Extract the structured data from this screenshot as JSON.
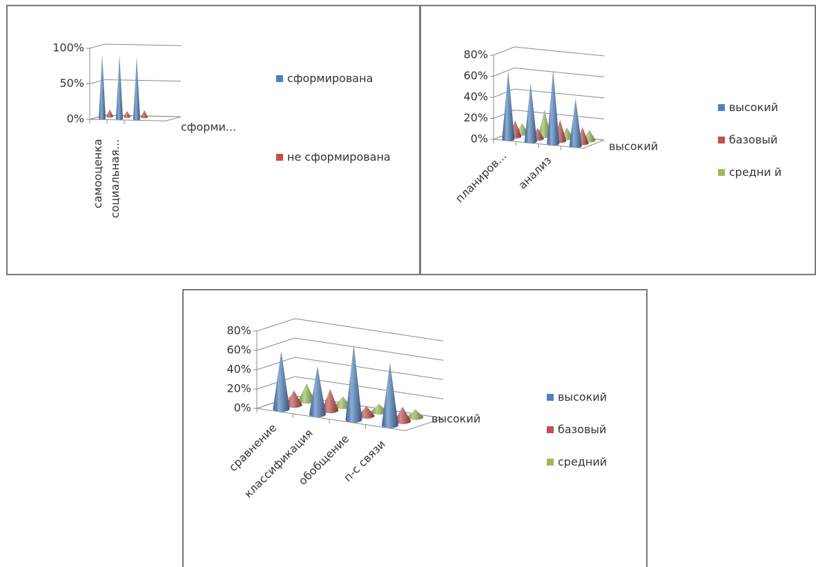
{
  "chart_data": [
    {
      "type": "cone",
      "categories": [
        "самооценка",
        "социальная...",
        null
      ],
      "z_categories": [
        "сформи..."
      ],
      "series": [
        {
          "name": "сформирована",
          "color": "#4f81bd",
          "values": [
            90,
            90,
            88
          ]
        },
        {
          "name": "не сформирована",
          "color": "#c0504d",
          "values": [
            10,
            8,
            10
          ]
        }
      ],
      "ylim": [
        0,
        100
      ],
      "yticks": [
        {
          "value": 0,
          "label": "0%"
        },
        {
          "value": 50,
          "label": "50%"
        },
        {
          "value": 100,
          "label": "100%"
        }
      ],
      "grid": true,
      "legend": "right"
    },
    {
      "type": "cone",
      "categories": [
        "планиров...",
        null,
        "анализ",
        null
      ],
      "z_categories": [
        "высокий"
      ],
      "series": [
        {
          "name": "высокий",
          "color": "#4f81bd",
          "values": [
            65,
            55,
            70,
            45
          ]
        },
        {
          "name": "базовый",
          "color": "#c0504d",
          "values": [
            15,
            10,
            20,
            15
          ]
        },
        {
          "name": "средни й",
          "color": "#9bbb59",
          "values": [
            10,
            25,
            10,
            10
          ]
        }
      ],
      "ylim": [
        0,
        80
      ],
      "yticks": [
        {
          "value": 0,
          "label": "0%"
        },
        {
          "value": 20,
          "label": "20%"
        },
        {
          "value": 40,
          "label": "40%"
        },
        {
          "value": 60,
          "label": "60%"
        },
        {
          "value": 80,
          "label": "80%"
        }
      ],
      "grid": true,
      "legend": "right"
    },
    {
      "type": "cone",
      "categories": [
        "сравнение",
        "классификация",
        "обобщение",
        "п-с связи"
      ],
      "z_categories": [
        "высокий"
      ],
      "series": [
        {
          "name": "высокий",
          "color": "#4f81bd",
          "values": [
            60,
            50,
            78,
            65
          ]
        },
        {
          "name": "базовый",
          "color": "#c0504d",
          "values": [
            15,
            22,
            10,
            15
          ]
        },
        {
          "name": "средний",
          "color": "#9bbb59",
          "values": [
            18,
            10,
            8,
            8
          ]
        }
      ],
      "ylim": [
        0,
        80
      ],
      "yticks": [
        {
          "value": 0,
          "label": "0%"
        },
        {
          "value": 20,
          "label": "20%"
        },
        {
          "value": 40,
          "label": "40%"
        },
        {
          "value": 60,
          "label": "60%"
        },
        {
          "value": 80,
          "label": "80%"
        }
      ],
      "grid": true,
      "legend": "right"
    }
  ]
}
